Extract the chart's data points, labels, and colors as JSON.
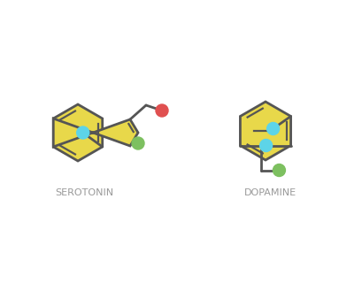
{
  "bg_color": "#ffffff",
  "line_color": "#555555",
  "fill_color": "#e8d84a",
  "atom_cyan": "#5dd4e8",
  "atom_red": "#e05050",
  "atom_green": "#7dc060",
  "line_width": 2.0,
  "label_serotonin": "SEROTONIN",
  "label_dopamine": "DOPAMINE",
  "label_color": "#999999",
  "label_fontsize": 8
}
